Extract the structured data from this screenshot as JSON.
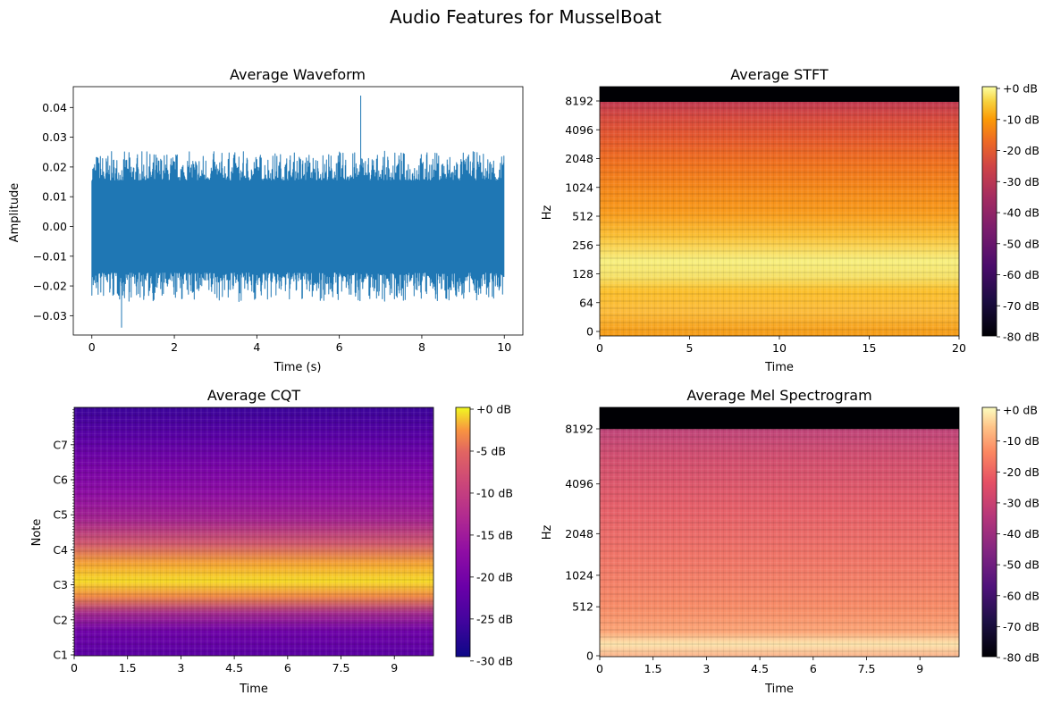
{
  "figure": {
    "suptitle": "Audio Features for MusselBoat"
  },
  "colors": {
    "waveform_line": "#1f77b4"
  },
  "chart_data": [
    {
      "type": "line",
      "title": "Average Waveform",
      "xlabel": "Time (s)",
      "ylabel": "Amplitude",
      "xlim": [
        -0.45,
        10.45
      ],
      "ylim": [
        -0.0365,
        0.047
      ],
      "x_ticks": [
        0,
        2,
        4,
        6,
        8,
        10
      ],
      "x_tick_labels": [
        "0",
        "2",
        "4",
        "6",
        "8",
        "10"
      ],
      "y_ticks": [
        -0.03,
        -0.02,
        -0.01,
        0.0,
        0.01,
        0.02,
        0.03,
        0.04
      ],
      "y_tick_labels": [
        "−0.03",
        "−0.02",
        "−0.01",
        "0.00",
        "0.01",
        "0.02",
        "0.03",
        "0.04"
      ],
      "duration_s": 10,
      "typical_envelope": [
        -0.022,
        0.022
      ],
      "peak_max": {
        "x": 6.52,
        "y": 0.044
      },
      "peak_min": {
        "x": 0.72,
        "y": -0.034
      }
    },
    {
      "type": "heatmap",
      "title": "Average STFT",
      "xlabel": "Time",
      "ylabel": "Hz",
      "xlim": [
        0,
        20
      ],
      "x_ticks": [
        0,
        5,
        10,
        15,
        20
      ],
      "x_tick_labels": [
        "0",
        "5",
        "10",
        "15",
        "20"
      ],
      "y_scale": "log",
      "y_ticks": [
        0,
        64,
        128,
        256,
        512,
        1024,
        2048,
        4096,
        8192
      ],
      "y_tick_labels": [
        "0",
        "64",
        "128",
        "256",
        "512",
        "1024",
        "2048",
        "4096",
        "8192"
      ],
      "colormap": "inferno",
      "colorbar_range": [
        -80,
        0
      ],
      "colorbar_ticks": [
        0,
        -10,
        -20,
        -30,
        -40,
        -50,
        -60,
        -70,
        -80
      ],
      "colorbar_labels": [
        "+0 dB",
        "-10 dB",
        "-20 dB",
        "-30 dB",
        "-40 dB",
        "-50 dB",
        "-60 dB",
        "-70 dB",
        "-80 dB"
      ]
    },
    {
      "type": "heatmap",
      "title": "Average CQT",
      "xlabel": "Time",
      "ylabel": "Note",
      "xlim": [
        0,
        10.1
      ],
      "x_ticks": [
        0,
        1.5,
        3,
        4.5,
        6,
        7.5,
        9
      ],
      "x_tick_labels": [
        "0",
        "1.5",
        "3",
        "4.5",
        "6",
        "7.5",
        "9"
      ],
      "y_ticks": [
        "C1",
        "C2",
        "C3",
        "C4",
        "C5",
        "C6",
        "C7"
      ],
      "y_tick_labels": [
        "C1",
        "C2",
        "C3",
        "C4",
        "C5",
        "C6",
        "C7"
      ],
      "colormap": "plasma",
      "colorbar_range": [
        -33,
        0
      ],
      "colorbar_ticks": [
        0,
        -5,
        -10,
        -15,
        -20,
        -25,
        -30
      ],
      "colorbar_labels": [
        "+0 dB",
        "-5 dB",
        "-10 dB",
        "-15 dB",
        "-20 dB",
        "-25 dB",
        "-30 dB"
      ]
    },
    {
      "type": "heatmap",
      "title": "Average Mel Spectrogram",
      "xlabel": "Time",
      "ylabel": "Hz",
      "xlim": [
        0,
        10.1
      ],
      "x_ticks": [
        0,
        1.5,
        3,
        4.5,
        6,
        7.5,
        9
      ],
      "x_tick_labels": [
        "0",
        "1.5",
        "3",
        "4.5",
        "6",
        "7.5",
        "9"
      ],
      "y_scale": "mel",
      "y_ticks": [
        0,
        512,
        1024,
        2048,
        4096,
        8192
      ],
      "y_tick_labels": [
        "0",
        "512",
        "1024",
        "2048",
        "4096",
        "8192"
      ],
      "colormap": "magma",
      "colorbar_range": [
        -80,
        0
      ],
      "colorbar_ticks": [
        0,
        -10,
        -20,
        -30,
        -40,
        -50,
        -60,
        -70,
        -80
      ],
      "colorbar_labels": [
        "+0 dB",
        "-10 dB",
        "-20 dB",
        "-30 dB",
        "-40 dB",
        "-50 dB",
        "-60 dB",
        "-70 dB",
        "-80 dB"
      ]
    }
  ]
}
